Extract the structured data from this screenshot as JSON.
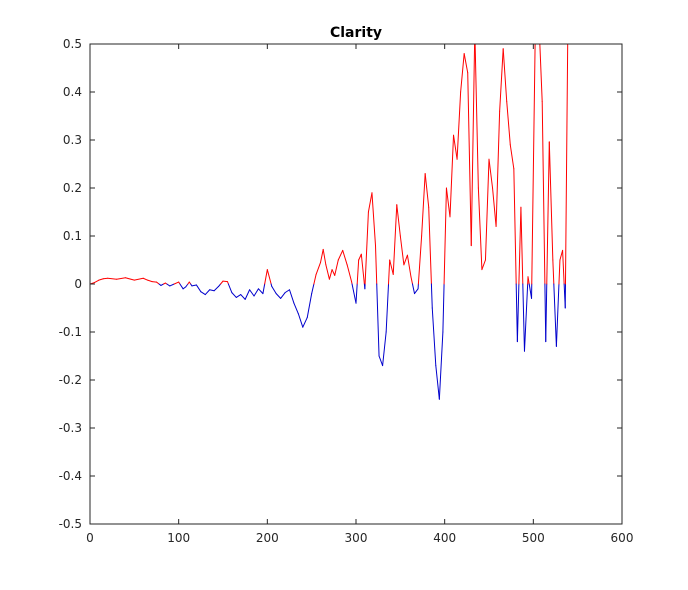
{
  "chart_data": {
    "type": "line",
    "title": "Clarity",
    "xlabel": "",
    "ylabel": "",
    "xlim": [
      0,
      600
    ],
    "ylim": [
      -0.5,
      0.5
    ],
    "xticks": [
      0,
      100,
      200,
      300,
      400,
      500,
      600
    ],
    "yticks": [
      -0.5,
      -0.4,
      -0.3,
      -0.2,
      -0.1,
      0,
      0.1,
      0.2,
      0.3,
      0.4,
      0.5
    ],
    "grid": false,
    "legend": "none",
    "colors": {
      "positive": "#ff0000",
      "negative": "#0000cc",
      "axes": "#262626"
    },
    "series": [
      {
        "color_rule": "red where value >= 0, blue where value < 0",
        "x": [
          0,
          5,
          10,
          15,
          20,
          30,
          40,
          50,
          60,
          65,
          70,
          75,
          80,
          85,
          90,
          95,
          100,
          105,
          108,
          112,
          115,
          120,
          125,
          130,
          135,
          140,
          145,
          150,
          155,
          160,
          165,
          170,
          175,
          180,
          185,
          190,
          195,
          200,
          205,
          210,
          215,
          220,
          225,
          230,
          235,
          240,
          245,
          250,
          255,
          260,
          263,
          266,
          270,
          273,
          276,
          280,
          285,
          290,
          295,
          300,
          303,
          306,
          310,
          314,
          318,
          322,
          326,
          330,
          334,
          338,
          342,
          346,
          350,
          354,
          358,
          362,
          366,
          370,
          374,
          378,
          382,
          386,
          390,
          394,
          398,
          402,
          406,
          410,
          414,
          418,
          422,
          426,
          430,
          434,
          438,
          442,
          446,
          450,
          454,
          458,
          462,
          466,
          470,
          474,
          478,
          482,
          486,
          490,
          494,
          498,
          502,
          506,
          510,
          514,
          518,
          522,
          526,
          530,
          533,
          536,
          539
        ],
        "y": [
          0.0,
          0.003,
          0.008,
          0.011,
          0.012,
          0.01,
          0.013,
          0.008,
          0.012,
          0.008,
          0.005,
          0.004,
          -0.003,
          0.002,
          -0.004,
          0.0,
          0.004,
          -0.01,
          -0.006,
          0.004,
          -0.004,
          -0.002,
          -0.016,
          -0.022,
          -0.012,
          -0.014,
          -0.005,
          0.006,
          0.005,
          -0.018,
          -0.028,
          -0.022,
          -0.032,
          -0.012,
          -0.025,
          -0.01,
          -0.02,
          0.03,
          -0.005,
          -0.02,
          -0.03,
          -0.018,
          -0.012,
          -0.04,
          -0.062,
          -0.09,
          -0.07,
          -0.02,
          0.02,
          0.045,
          0.072,
          0.04,
          0.01,
          0.03,
          0.018,
          0.05,
          0.07,
          0.04,
          0.005,
          -0.04,
          0.05,
          0.062,
          -0.01,
          0.15,
          0.19,
          0.08,
          -0.15,
          -0.17,
          -0.1,
          0.05,
          0.02,
          0.165,
          0.1,
          0.04,
          0.06,
          0.015,
          -0.02,
          -0.01,
          0.1,
          0.23,
          0.16,
          -0.05,
          -0.17,
          -0.24,
          -0.1,
          0.2,
          0.14,
          0.31,
          0.26,
          0.4,
          0.48,
          0.44,
          0.08,
          0.53,
          0.2,
          0.03,
          0.05,
          0.26,
          0.2,
          0.12,
          0.36,
          0.49,
          0.38,
          0.29,
          0.24,
          -0.12,
          0.16,
          -0.14,
          0.015,
          -0.03,
          0.5,
          0.56,
          0.38,
          -0.12,
          0.296,
          0.05,
          -0.13,
          0.05,
          0.07,
          -0.05,
          0.55
        ]
      }
    ]
  }
}
